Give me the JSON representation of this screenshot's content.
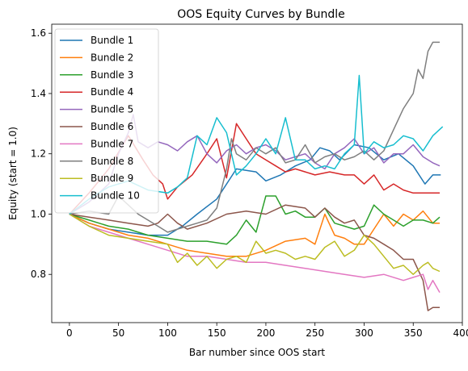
{
  "chart_data": {
    "type": "line",
    "title": "OOS Equity Curves by Bundle",
    "xlabel": "Bar number since OOS start",
    "ylabel": "Equity (start = 1.0)",
    "xlim": [
      -18,
      400
    ],
    "ylim": [
      0.64,
      1.63
    ],
    "x_ticks": [
      0,
      50,
      100,
      150,
      200,
      250,
      300,
      350,
      400
    ],
    "y_ticks": [
      0.8,
      1.0,
      1.2,
      1.4,
      1.6
    ],
    "x_tick_labels": [
      "0",
      "50",
      "100",
      "150",
      "200",
      "250",
      "300",
      "350",
      "400"
    ],
    "y_tick_labels": [
      "0.8",
      "1.0",
      "1.2",
      "1.4",
      "1.6"
    ],
    "grid": false,
    "legend_position": "top-left",
    "series": [
      {
        "name": "Bundle 1",
        "color": "#1f77b4",
        "x": [
          0,
          20,
          40,
          60,
          80,
          100,
          115,
          130,
          150,
          170,
          190,
          200,
          215,
          230,
          245,
          255,
          265,
          275,
          290,
          305,
          320,
          335,
          350,
          362,
          370,
          378
        ],
        "y": [
          1.0,
          0.97,
          0.95,
          0.94,
          0.93,
          0.93,
          0.96,
          1.0,
          1.05,
          1.15,
          1.14,
          1.11,
          1.13,
          1.16,
          1.18,
          1.22,
          1.21,
          1.18,
          1.23,
          1.22,
          1.18,
          1.2,
          1.16,
          1.1,
          1.13,
          1.13
        ]
      },
      {
        "name": "Bundle 2",
        "color": "#ff7f0e",
        "x": [
          0,
          20,
          40,
          60,
          80,
          100,
          120,
          140,
          160,
          180,
          200,
          220,
          240,
          250,
          260,
          270,
          280,
          290,
          300,
          310,
          320,
          330,
          340,
          350,
          360,
          370,
          377
        ],
        "y": [
          1.0,
          0.97,
          0.95,
          0.93,
          0.92,
          0.9,
          0.88,
          0.87,
          0.86,
          0.86,
          0.88,
          0.91,
          0.92,
          0.9,
          1.0,
          0.93,
          0.92,
          0.9,
          0.9,
          0.95,
          1.0,
          0.96,
          1.0,
          0.98,
          1.01,
          0.97,
          0.97
        ]
      },
      {
        "name": "Bundle 3",
        "color": "#2ca02c",
        "x": [
          0,
          20,
          40,
          60,
          80,
          100,
          120,
          140,
          160,
          170,
          180,
          190,
          200,
          210,
          220,
          230,
          240,
          250,
          260,
          270,
          280,
          290,
          300,
          310,
          320,
          330,
          340,
          350,
          360,
          370,
          377
        ],
        "y": [
          1.0,
          0.98,
          0.96,
          0.95,
          0.93,
          0.92,
          0.91,
          0.91,
          0.9,
          0.93,
          0.98,
          0.94,
          1.06,
          1.06,
          1.0,
          1.01,
          0.99,
          0.99,
          1.02,
          0.97,
          0.96,
          0.95,
          0.96,
          1.03,
          1.0,
          0.98,
          0.96,
          0.98,
          0.98,
          0.97,
          0.99
        ]
      },
      {
        "name": "Bundle 4",
        "color": "#d62728",
        "x": [
          0,
          20,
          40,
          60,
          75,
          85,
          95,
          100,
          110,
          125,
          140,
          150,
          160,
          170,
          180,
          190,
          200,
          210,
          220,
          230,
          240,
          250,
          265,
          280,
          290,
          300,
          310,
          320,
          330,
          340,
          350,
          360,
          370,
          377
        ],
        "y": [
          1.0,
          1.07,
          1.15,
          1.26,
          1.18,
          1.13,
          1.1,
          1.05,
          1.09,
          1.13,
          1.2,
          1.25,
          1.12,
          1.3,
          1.25,
          1.2,
          1.18,
          1.16,
          1.14,
          1.15,
          1.14,
          1.13,
          1.14,
          1.13,
          1.13,
          1.1,
          1.13,
          1.08,
          1.1,
          1.08,
          1.07,
          1.07,
          1.07,
          1.07
        ]
      },
      {
        "name": "Bundle 5",
        "color": "#9467bd",
        "x": [
          0,
          20,
          40,
          50,
          60,
          65,
          70,
          80,
          90,
          100,
          110,
          120,
          130,
          140,
          150,
          160,
          170,
          180,
          190,
          200,
          210,
          220,
          230,
          240,
          250,
          260,
          270,
          280,
          290,
          300,
          310,
          320,
          330,
          340,
          350,
          360,
          370,
          377
        ],
        "y": [
          1.0,
          1.04,
          1.1,
          1.2,
          1.27,
          1.33,
          1.24,
          1.22,
          1.24,
          1.23,
          1.21,
          1.24,
          1.26,
          1.2,
          1.17,
          1.21,
          1.23,
          1.2,
          1.22,
          1.23,
          1.21,
          1.18,
          1.19,
          1.2,
          1.17,
          1.15,
          1.2,
          1.22,
          1.25,
          1.2,
          1.22,
          1.17,
          1.2,
          1.2,
          1.23,
          1.19,
          1.17,
          1.16
        ]
      },
      {
        "name": "Bundle 6",
        "color": "#8c564b",
        "x": [
          0,
          20,
          40,
          60,
          80,
          90,
          100,
          110,
          120,
          140,
          160,
          180,
          200,
          220,
          240,
          250,
          260,
          270,
          280,
          290,
          300,
          310,
          320,
          330,
          340,
          350,
          360,
          365,
          370,
          377
        ],
        "y": [
          1.0,
          0.99,
          0.98,
          0.97,
          0.96,
          0.97,
          1.0,
          0.97,
          0.95,
          0.97,
          1.0,
          1.01,
          1.0,
          1.03,
          1.02,
          0.99,
          1.02,
          0.99,
          0.97,
          0.98,
          0.93,
          0.92,
          0.9,
          0.88,
          0.85,
          0.85,
          0.78,
          0.68,
          0.69,
          0.69
        ]
      },
      {
        "name": "Bundle 7",
        "color": "#e377c2",
        "x": [
          0,
          20,
          40,
          60,
          80,
          100,
          120,
          140,
          160,
          180,
          200,
          220,
          240,
          260,
          280,
          300,
          320,
          340,
          350,
          360,
          365,
          370,
          377
        ],
        "y": [
          1.0,
          0.96,
          0.94,
          0.92,
          0.9,
          0.88,
          0.86,
          0.86,
          0.85,
          0.84,
          0.84,
          0.83,
          0.82,
          0.81,
          0.8,
          0.79,
          0.8,
          0.78,
          0.79,
          0.8,
          0.75,
          0.78,
          0.74
        ]
      },
      {
        "name": "Bundle 8",
        "color": "#7f7f7f",
        "x": [
          0,
          20,
          40,
          50,
          60,
          70,
          80,
          90,
          100,
          110,
          120,
          130,
          140,
          150,
          160,
          165,
          170,
          180,
          190,
          200,
          210,
          220,
          230,
          240,
          250,
          260,
          270,
          280,
          290,
          300,
          310,
          320,
          330,
          340,
          350,
          355,
          360,
          365,
          370,
          377
        ],
        "y": [
          1.0,
          1.01,
          1.0,
          1.06,
          1.03,
          1.0,
          0.98,
          0.96,
          0.94,
          0.95,
          0.96,
          0.97,
          0.98,
          1.02,
          1.15,
          1.25,
          1.2,
          1.18,
          1.22,
          1.2,
          1.22,
          1.17,
          1.18,
          1.23,
          1.17,
          1.19,
          1.2,
          1.18,
          1.19,
          1.21,
          1.18,
          1.21,
          1.28,
          1.35,
          1.4,
          1.48,
          1.45,
          1.54,
          1.57,
          1.57
        ]
      },
      {
        "name": "Bundle 9",
        "color": "#bcbd22",
        "x": [
          0,
          20,
          40,
          60,
          80,
          100,
          110,
          120,
          130,
          140,
          150,
          160,
          170,
          180,
          190,
          200,
          210,
          220,
          230,
          240,
          250,
          260,
          270,
          280,
          290,
          300,
          310,
          320,
          330,
          340,
          350,
          360,
          365,
          370,
          377
        ],
        "y": [
          1.0,
          0.96,
          0.93,
          0.92,
          0.91,
          0.9,
          0.84,
          0.87,
          0.83,
          0.86,
          0.82,
          0.85,
          0.86,
          0.84,
          0.91,
          0.87,
          0.88,
          0.87,
          0.85,
          0.86,
          0.85,
          0.89,
          0.91,
          0.86,
          0.88,
          0.93,
          0.9,
          0.86,
          0.82,
          0.83,
          0.8,
          0.83,
          0.84,
          0.82,
          0.81
        ]
      },
      {
        "name": "Bundle 10",
        "color": "#17becf",
        "x": [
          0,
          20,
          40,
          60,
          80,
          100,
          110,
          120,
          130,
          140,
          150,
          160,
          170,
          180,
          190,
          200,
          210,
          220,
          230,
          240,
          250,
          260,
          270,
          280,
          290,
          295,
          300,
          305,
          310,
          320,
          330,
          340,
          350,
          360,
          370,
          380
        ],
        "y": [
          1.0,
          1.05,
          1.09,
          1.11,
          1.08,
          1.07,
          1.09,
          1.12,
          1.26,
          1.23,
          1.32,
          1.27,
          1.13,
          1.16,
          1.2,
          1.25,
          1.2,
          1.32,
          1.18,
          1.18,
          1.15,
          1.16,
          1.15,
          1.2,
          1.23,
          1.46,
          1.2,
          1.22,
          1.24,
          1.22,
          1.23,
          1.26,
          1.25,
          1.21,
          1.26,
          1.29
        ]
      }
    ]
  }
}
